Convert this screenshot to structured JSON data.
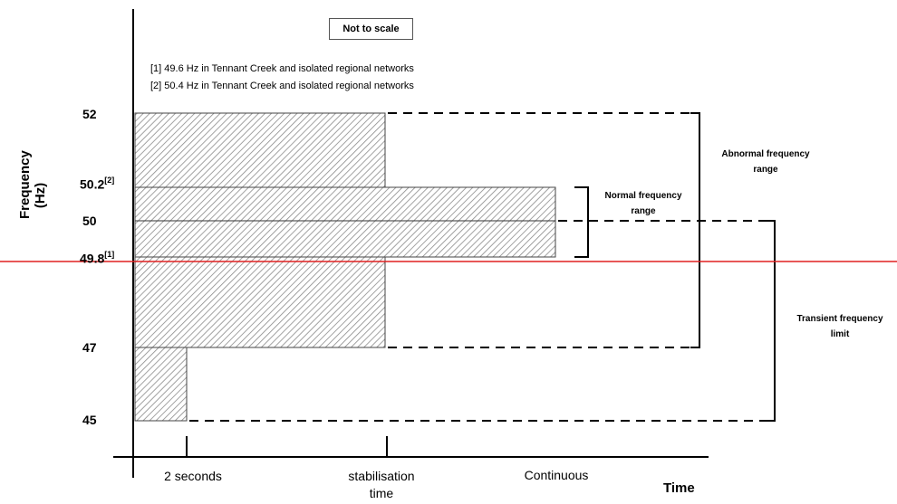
{
  "note_box": "Not to scale",
  "notes": [
    "[1] 49.6 Hz in Tennant Creek and isolated regional networks",
    "[2] 50.4 Hz in Tennant Creek and isolated regional networks"
  ],
  "y_axis": {
    "title_line1": "Frequency",
    "title_line2": "(Hz)",
    "ticks": [
      {
        "label": "52",
        "sup": ""
      },
      {
        "label": "50.2",
        "sup": "[2]"
      },
      {
        "label": "50",
        "sup": ""
      },
      {
        "label": "49.8",
        "sup": "[1]"
      },
      {
        "label": "47",
        "sup": ""
      },
      {
        "label": "45",
        "sup": ""
      }
    ]
  },
  "x_axis": {
    "title": "Time",
    "labels": [
      {
        "line1": "2 seconds",
        "line2": ""
      },
      {
        "line1": "stabilisation",
        "line2": "time"
      },
      {
        "line1": "Continuous",
        "line2": ""
      }
    ]
  },
  "regions": {
    "abnormal": {
      "line1": "Abnormal frequency",
      "line2": "range"
    },
    "normal": {
      "line1": "Normal frequency",
      "line2": "range"
    },
    "transient": {
      "line1": "Transient frequency",
      "line2": "limit"
    }
  },
  "colors": {
    "hatch": "#8a8a8a",
    "marker_line": "#e02020",
    "ink": "#000000"
  }
}
